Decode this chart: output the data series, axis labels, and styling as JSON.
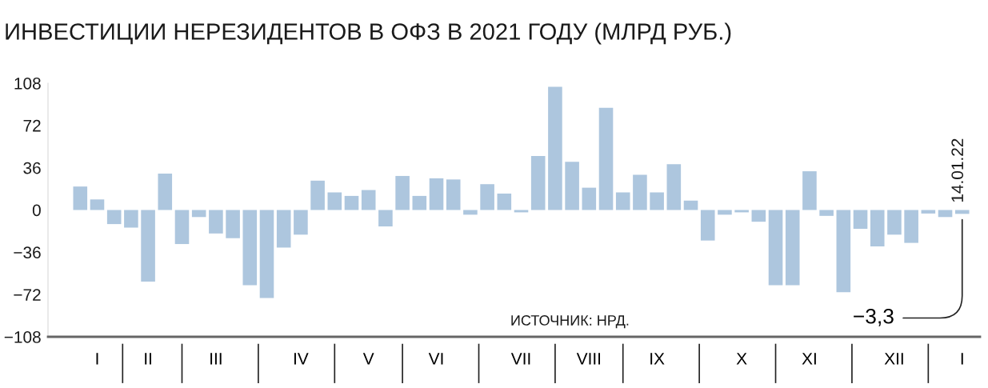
{
  "chart_data": {
    "type": "bar",
    "title": "ИНВЕСТИЦИИ НЕРЕЗИДЕНТОВ В ОФЗ В 2021 ГОДУ (МЛРД РУБ.)",
    "categories": [
      null,
      "I",
      null,
      null,
      "II",
      null,
      null,
      null,
      "III",
      null,
      null,
      null,
      null,
      "IV",
      null,
      null,
      null,
      "V",
      null,
      null,
      null,
      "VI",
      null,
      null,
      null,
      null,
      "VII",
      null,
      null,
      null,
      "VIII",
      null,
      null,
      null,
      "IX",
      null,
      null,
      null,
      null,
      "X",
      null,
      null,
      null,
      "XI",
      null,
      null,
      null,
      null,
      "XII",
      null,
      null,
      null,
      "I"
    ],
    "values": [
      20,
      9,
      -12,
      -15,
      -61,
      31,
      -29,
      -6,
      -20,
      -24,
      -64,
      -75,
      -32,
      -21,
      25,
      15,
      12,
      17,
      -14,
      29,
      12,
      27,
      26,
      -4,
      22,
      14,
      -2,
      46,
      105,
      41,
      19,
      87,
      15,
      30,
      15,
      39,
      8,
      -26,
      -4,
      -2,
      -10,
      -64,
      -64,
      33,
      -5,
      -70,
      -16,
      -31,
      -21,
      -28,
      -3,
      -6,
      -3.3
    ],
    "color": "#adc6de",
    "ylim": [
      -108,
      108
    ],
    "yticks": [
      108,
      72,
      36,
      0,
      {
        "value": -36,
        "label": "−36"
      },
      {
        "value": -72,
        "label": "−72"
      },
      {
        "value": -108,
        "label": "−108"
      }
    ],
    "grid": false,
    "annotations": [
      "ИСТОЧНИК: НРД.",
      "−3,3",
      "14.01.22"
    ]
  }
}
